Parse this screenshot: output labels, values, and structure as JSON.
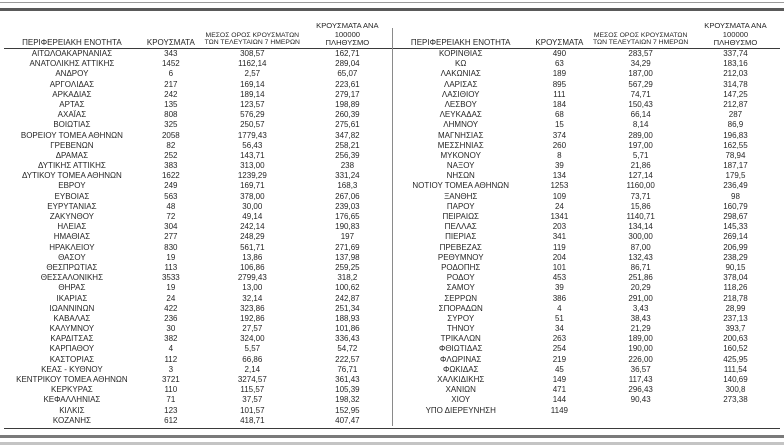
{
  "table": {
    "headers": {
      "region": "ΠΕΡΙΦΕΡΕΙΑΚΗ ΕΝΟΤΗΤΑ",
      "cases": "ΚΡΟΥΣΜΑΤΑ",
      "avg7_line1": "ΜΕΣΟΣ ΟΡΟΣ ΚΡΟΥΣΜΑΤΩΝ",
      "avg7_line2": "ΤΩΝ ΤΕΛΕΥΤΑΙΩΝ 7 ΗΜΕΡΩΝ",
      "per100k_line1": "ΚΡΟΥΣΜΑΤΑ ΑΝΑ 100000",
      "per100k_line2": "ΠΛΗΘΥΣΜΟ"
    },
    "left": {
      "rows": [
        [
          "ΑΙΤΩΛΟΑΚΑΡΝΑΝΙΑΣ",
          "343",
          "308,57",
          "162,71"
        ],
        [
          "ΑΝΑΤΟΛΙΚΗΣ ΑΤΤΙΚΗΣ",
          "1452",
          "1162,14",
          "289,04"
        ],
        [
          "ΑΝΔΡΟΥ",
          "6",
          "2,57",
          "65,07"
        ],
        [
          "ΑΡΓΟΛΙΔΑΣ",
          "217",
          "169,14",
          "223,61"
        ],
        [
          "ΑΡΚΑΔΙΑΣ",
          "242",
          "189,14",
          "279,17"
        ],
        [
          "ΑΡΤΑΣ",
          "135",
          "123,57",
          "198,89"
        ],
        [
          "ΑΧΑΪΑΣ",
          "808",
          "576,29",
          "260,39"
        ],
        [
          "ΒΟΙΩΤΙΑΣ",
          "325",
          "250,57",
          "275,61"
        ],
        [
          "ΒΟΡΕΙΟΥ ΤΟΜΕΑ ΑΘΗΝΩΝ",
          "2058",
          "1779,43",
          "347,82"
        ],
        [
          "ΓΡΕΒΕΝΩΝ",
          "82",
          "56,43",
          "258,21"
        ],
        [
          "ΔΡΑΜΑΣ",
          "252",
          "143,71",
          "256,39"
        ],
        [
          "ΔΥΤΙΚΗΣ ΑΤΤΙΚΗΣ",
          "383",
          "313,00",
          "238"
        ],
        [
          "ΔΥΤΙΚΟΥ ΤΟΜΕΑ ΑΘΗΝΩΝ",
          "1622",
          "1239,29",
          "331,24"
        ],
        [
          "ΕΒΡΟΥ",
          "249",
          "169,71",
          "168,3"
        ],
        [
          "ΕΥΒΟΙΑΣ",
          "563",
          "378,00",
          "267,06"
        ],
        [
          "ΕΥΡΥΤΑΝΙΑΣ",
          "48",
          "30,00",
          "239,03"
        ],
        [
          "ΖΑΚΥΝΘΟΥ",
          "72",
          "49,14",
          "176,65"
        ],
        [
          "ΗΛΕΙΑΣ",
          "304",
          "242,14",
          "190,83"
        ],
        [
          "ΗΜΑΘΙΑΣ",
          "277",
          "248,29",
          "197"
        ],
        [
          "ΗΡΑΚΛΕΙΟΥ",
          "830",
          "561,71",
          "271,69"
        ],
        [
          "ΘΑΣΟΥ",
          "19",
          "13,86",
          "137,98"
        ],
        [
          "ΘΕΣΠΡΩΤΙΑΣ",
          "113",
          "106,86",
          "259,25"
        ],
        [
          "ΘΕΣΣΑΛΟΝΙΚΗΣ",
          "3533",
          "2799,43",
          "318,2"
        ],
        [
          "ΘΗΡΑΣ",
          "19",
          "13,00",
          "100,62"
        ],
        [
          "ΙΚΑΡΙΑΣ",
          "24",
          "32,14",
          "242,87"
        ],
        [
          "ΙΩΑΝΝΙΝΩΝ",
          "422",
          "323,86",
          "251,34"
        ],
        [
          "ΚΑΒΑΛΑΣ",
          "236",
          "192,86",
          "188,93"
        ],
        [
          "ΚΑΛΥΜΝΟΥ",
          "30",
          "27,57",
          "101,86"
        ],
        [
          "ΚΑΡΔΙΤΣΑΣ",
          "382",
          "324,00",
          "336,43"
        ],
        [
          "ΚΑΡΠΑΘΟΥ",
          "4",
          "5,57",
          "54,72"
        ],
        [
          "ΚΑΣΤΟΡΙΑΣ",
          "112",
          "66,86",
          "222,57"
        ],
        [
          "ΚΕΑΣ - ΚΥΘΝΟΥ",
          "3",
          "2,14",
          "76,71"
        ],
        [
          "ΚΕΝΤΡΙΚΟΥ ΤΟΜΕΑ ΑΘΗΝΩΝ",
          "3721",
          "3274,57",
          "361,43"
        ],
        [
          "ΚΕΡΚΥΡΑΣ",
          "110",
          "115,57",
          "105,39"
        ],
        [
          "ΚΕΦΑΛΛΗΝΙΑΣ",
          "71",
          "37,57",
          "198,32"
        ],
        [
          "ΚΙΛΚΙΣ",
          "123",
          "101,57",
          "152,95"
        ],
        [
          "ΚΟΖΑΝΗΣ",
          "612",
          "418,71",
          "407,47"
        ]
      ]
    },
    "right": {
      "rows": [
        [
          "ΚΟΡΙΝΘΙΑΣ",
          "490",
          "283,57",
          "337,74"
        ],
        [
          "ΚΩ",
          "63",
          "34,29",
          "183,16"
        ],
        [
          "ΛΑΚΩΝΙΑΣ",
          "189",
          "187,00",
          "212,03"
        ],
        [
          "ΛΑΡΙΣΑΣ",
          "895",
          "567,29",
          "314,78"
        ],
        [
          "ΛΑΣΙΘΙΟΥ",
          "111",
          "74,71",
          "147,25"
        ],
        [
          "ΛΕΣΒΟΥ",
          "184",
          "150,43",
          "212,87"
        ],
        [
          "ΛΕΥΚΑΔΑΣ",
          "68",
          "66,14",
          "287"
        ],
        [
          "ΛΗΜΝΟΥ",
          "15",
          "8,14",
          "86,9"
        ],
        [
          "ΜΑΓΝΗΣΙΑΣ",
          "374",
          "289,00",
          "196,83"
        ],
        [
          "ΜΕΣΣΗΝΙΑΣ",
          "260",
          "197,00",
          "162,55"
        ],
        [
          "ΜΥΚΟΝΟΥ",
          "8",
          "5,71",
          "78,94"
        ],
        [
          "ΝΑΞΟΥ",
          "39",
          "21,86",
          "187,17"
        ],
        [
          "ΝΗΣΩΝ",
          "134",
          "127,14",
          "179,5"
        ],
        [
          "ΝΟΤΙΟΥ ΤΟΜΕΑ ΑΘΗΝΩΝ",
          "1253",
          "1160,00",
          "236,49"
        ],
        [
          "ΞΑΝΘΗΣ",
          "109",
          "73,71",
          "98"
        ],
        [
          "ΠΑΡΟΥ",
          "24",
          "15,86",
          "160,79"
        ],
        [
          "ΠΕΙΡΑΙΩΣ",
          "1341",
          "1140,71",
          "298,67"
        ],
        [
          "ΠΕΛΛΑΣ",
          "203",
          "134,14",
          "145,33"
        ],
        [
          "ΠΙΕΡΙΑΣ",
          "341",
          "300,00",
          "269,14"
        ],
        [
          "ΠΡΕΒΕΖΑΣ",
          "119",
          "87,00",
          "206,99"
        ],
        [
          "ΡΕΘΥΜΝΟΥ",
          "204",
          "132,43",
          "238,29"
        ],
        [
          "ΡΟΔΟΠΗΣ",
          "101",
          "86,71",
          "90,15"
        ],
        [
          "ΡΟΔΟΥ",
          "453",
          "251,86",
          "378,04"
        ],
        [
          "ΣΑΜΟΥ",
          "39",
          "20,29",
          "118,26"
        ],
        [
          "ΣΕΡΡΩΝ",
          "386",
          "291,00",
          "218,78"
        ],
        [
          "ΣΠΟΡΑΔΩΝ",
          "4",
          "3,43",
          "28,99"
        ],
        [
          "ΣΥΡΟΥ",
          "51",
          "38,43",
          "237,13"
        ],
        [
          "ΤΗΝΟΥ",
          "34",
          "21,29",
          "393,7"
        ],
        [
          "ΤΡΙΚΑΛΩΝ",
          "263",
          "189,00",
          "200,63"
        ],
        [
          "ΦΘΙΩΤΙΔΑΣ",
          "254",
          "190,00",
          "160,52"
        ],
        [
          "ΦΛΩΡΙΝΑΣ",
          "219",
          "226,00",
          "425,95"
        ],
        [
          "ΦΩΚΙΔΑΣ",
          "45",
          "36,57",
          "111,54"
        ],
        [
          "ΧΑΛΚΙΔΙΚΗΣ",
          "149",
          "117,43",
          "140,69"
        ],
        [
          "ΧΑΝΙΩΝ",
          "471",
          "296,43",
          "300,8"
        ],
        [
          "ΧΙΟΥ",
          "144",
          "90,43",
          "273,38"
        ],
        [
          "ΥΠΟ ΔΙΕΡΕΥΝΗΣΗ",
          "1149",
          "",
          ""
        ]
      ]
    },
    "colors": {
      "text": "#262626",
      "rule_dark": "#5a5a5a",
      "rule_light": "#c4c4c4"
    }
  }
}
